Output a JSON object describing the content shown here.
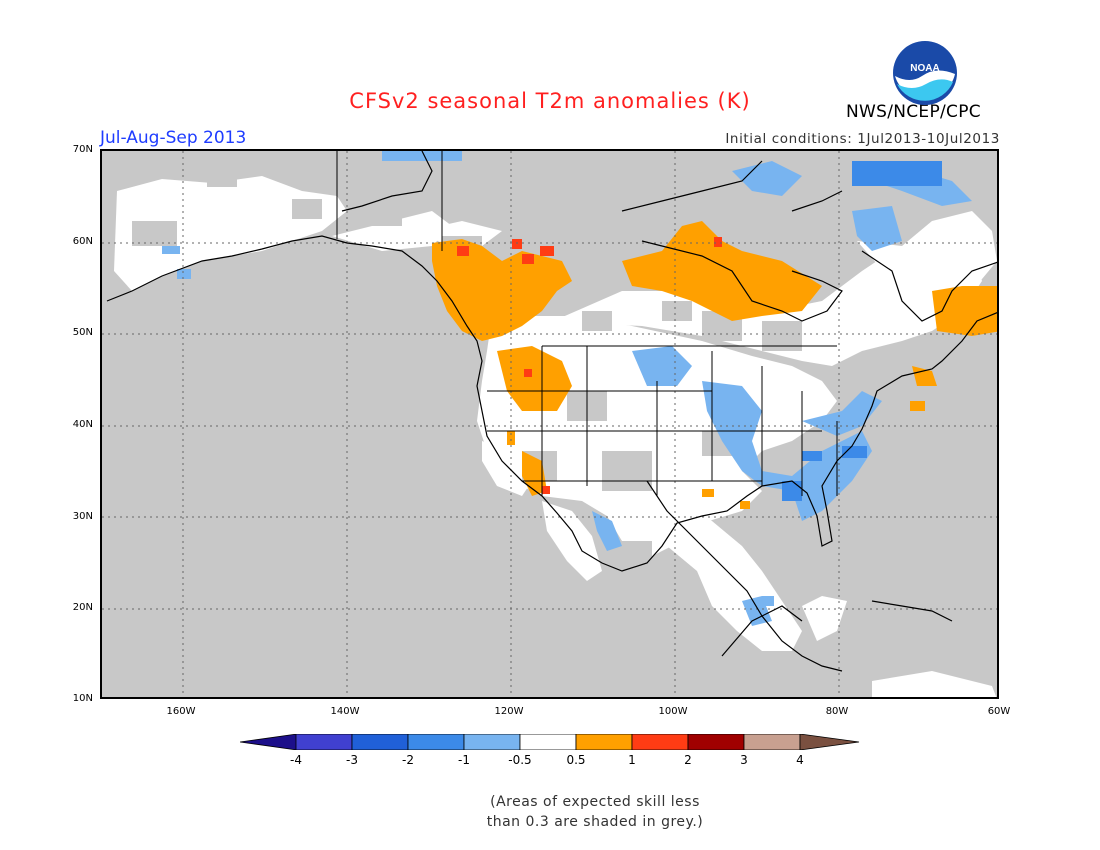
{
  "header": {
    "title": "CFSv2 seasonal T2m anomalies (K)",
    "period": "Jul-Aug-Sep 2013",
    "initial_conditions": "Initial conditions: 1Jul2013-10Jul2013",
    "agency": "NWS/NCEP/CPC",
    "logo_text": "NOAA"
  },
  "map": {
    "lat_labels": [
      "70N",
      "60N",
      "50N",
      "40N",
      "30N",
      "20N",
      "10N"
    ],
    "lon_labels": [
      "160W",
      "140W",
      "120W",
      "100W",
      "80W",
      "60W"
    ],
    "skill_mask_color": "#c8c8c8",
    "ocean_no_skill": true
  },
  "legend": {
    "labels": [
      "-4",
      "-3",
      "-2",
      "-1",
      "-0.5",
      "0.5",
      "1",
      "2",
      "3",
      "4"
    ],
    "colors": [
      "#1c0f8a",
      "#4040d0",
      "#2060d8",
      "#3c8ae8",
      "#78b4f0",
      "#ffffff",
      "#ffa000",
      "#ff3c14",
      "#a00000",
      "#c8a090",
      "#7a5040"
    ]
  },
  "note": {
    "line1": "(Areas of expected skill less",
    "line2": "than 0.3 are shaded in grey.)"
  }
}
